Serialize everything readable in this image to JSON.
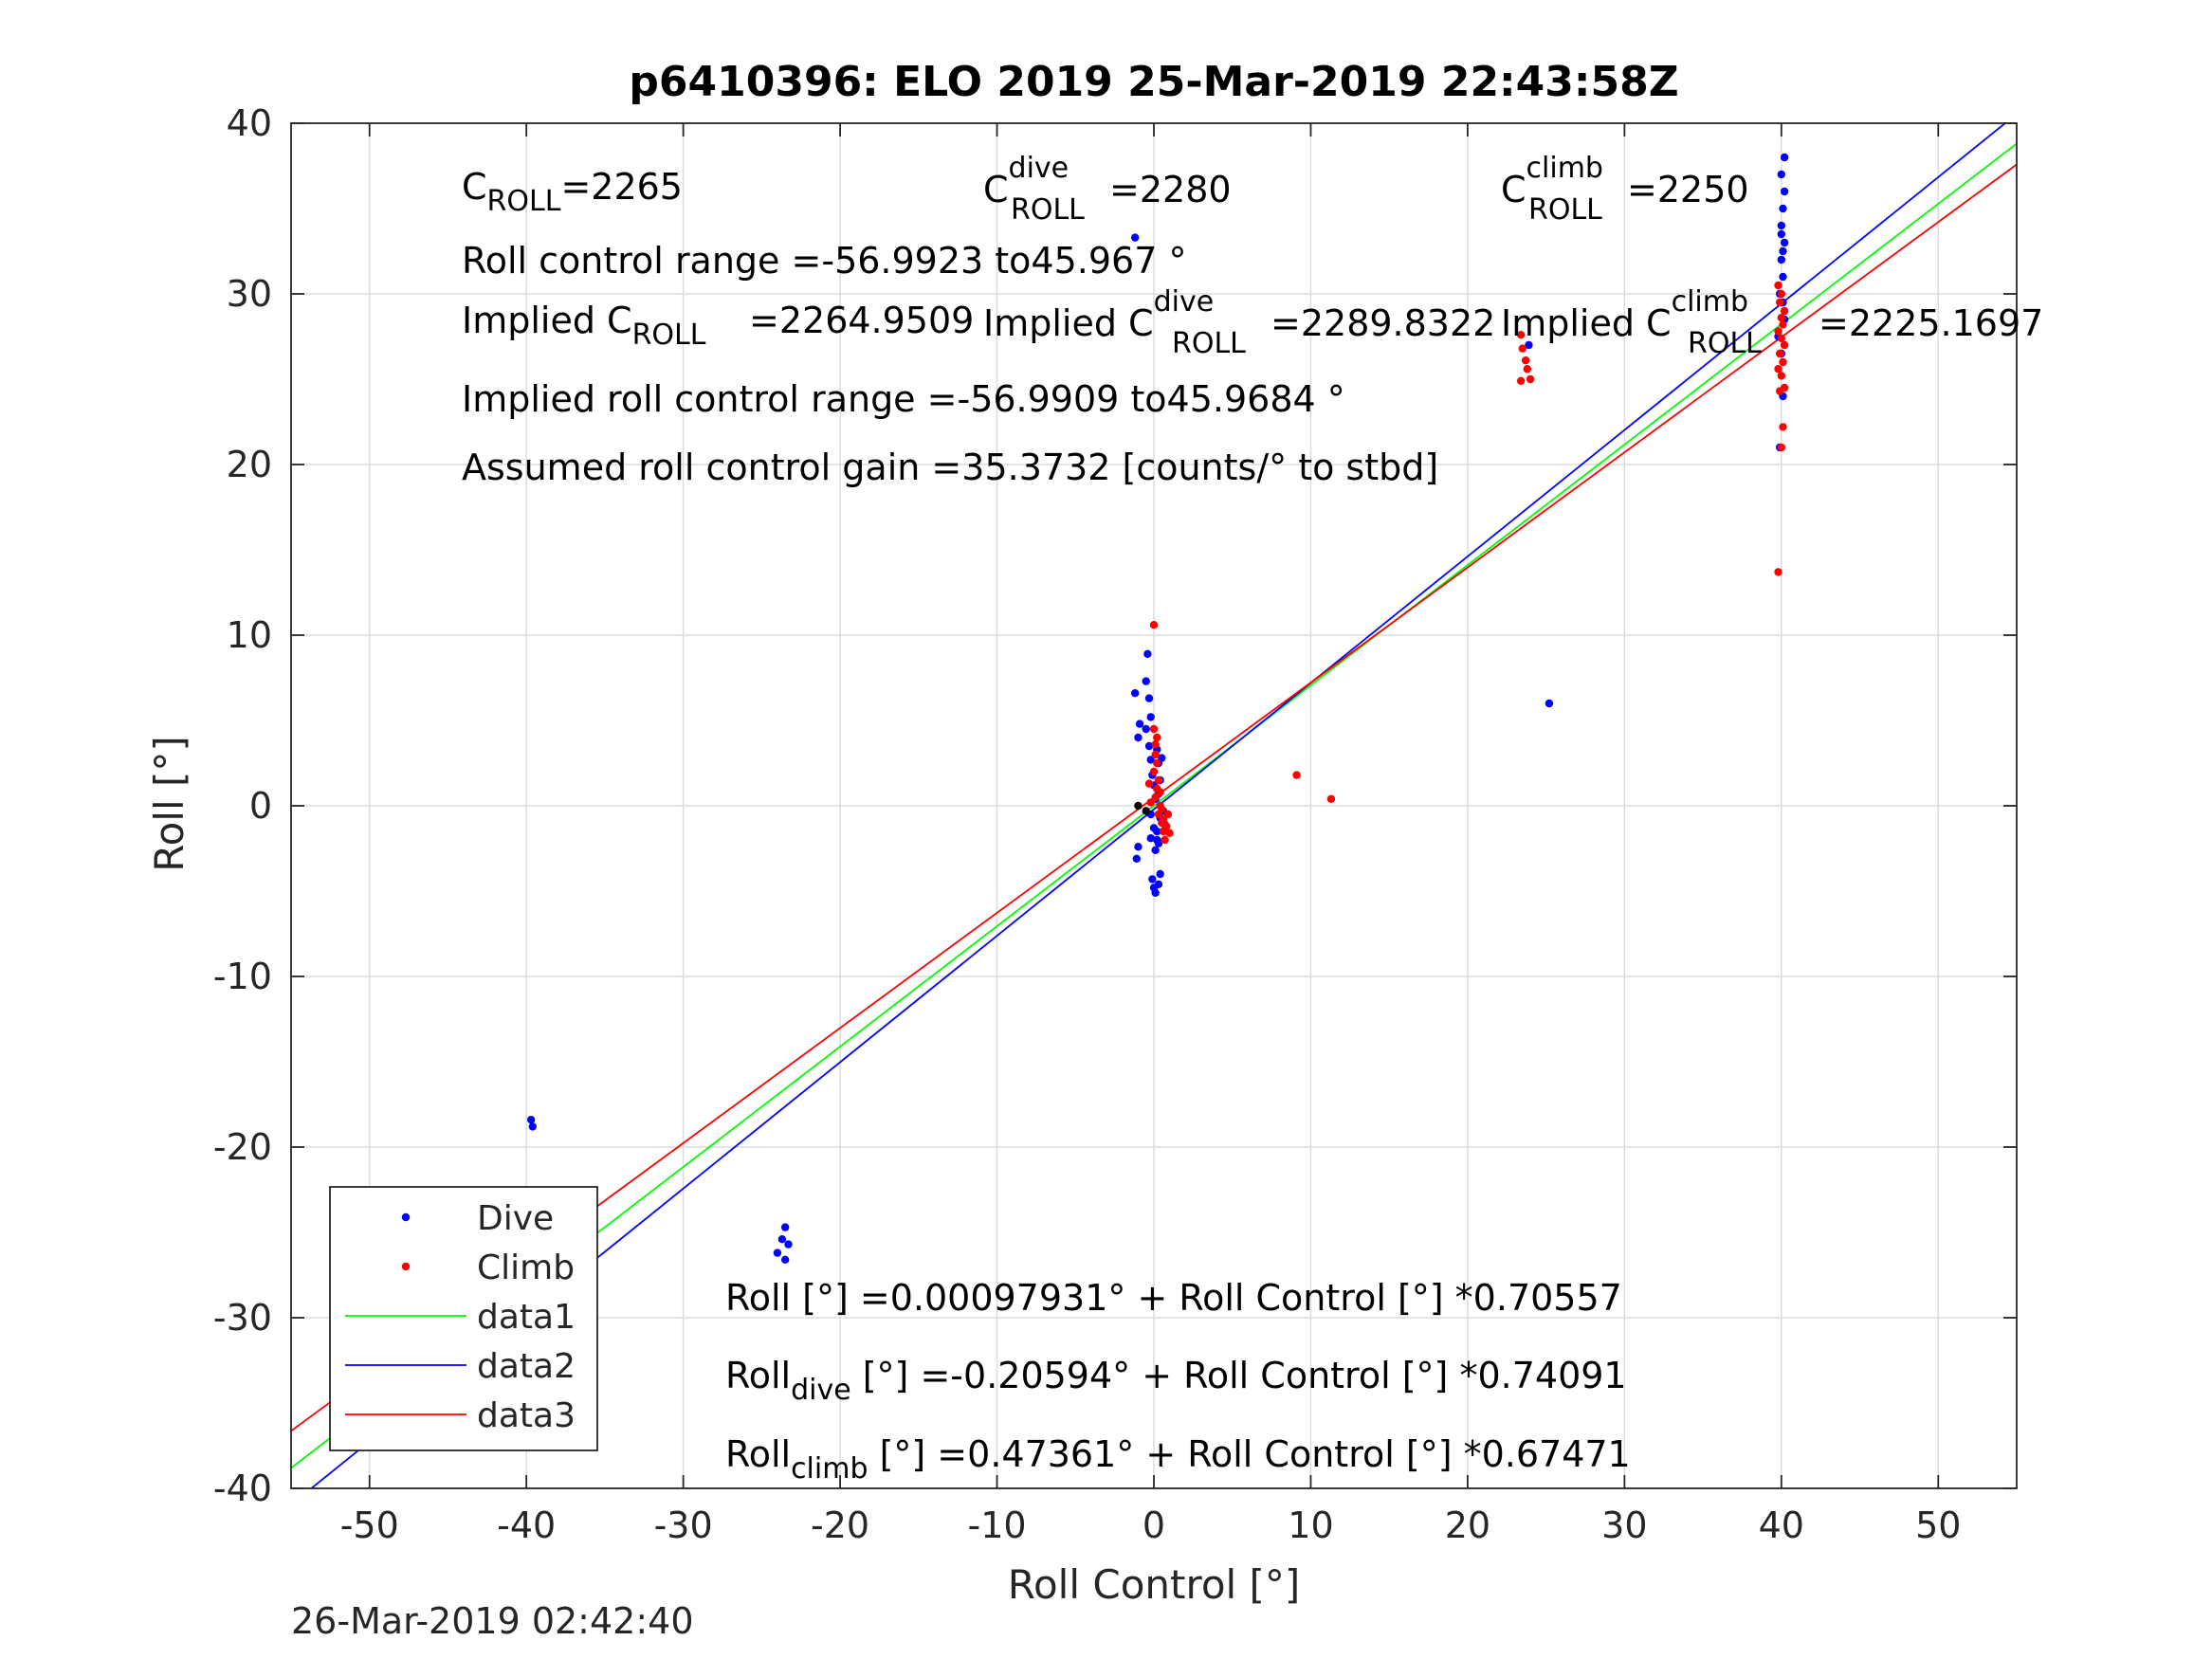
{
  "chart_data": {
    "type": "scatter",
    "title": "p6410396: ELO 2019 25-Mar-2019 22:43:58Z",
    "xlabel": "Roll Control [°]",
    "ylabel": "Roll [°]",
    "xlim": [
      -55,
      55
    ],
    "ylim": [
      -40,
      40
    ],
    "xticks": [
      "-50",
      "-40",
      "-30",
      "-20",
      "-10",
      "0",
      "10",
      "20",
      "30",
      "40",
      "50"
    ],
    "yticks": [
      "-40",
      "-30",
      "-20",
      "-10",
      "0",
      "10",
      "20",
      "30",
      "40"
    ],
    "grid": true,
    "legend_position": "bottom-left",
    "footer": "26-Mar-2019 02:42:40",
    "colors": {
      "dive": "#0000ff",
      "climb": "#ff0000",
      "data1": "#00ff00",
      "data2": "#0000ff",
      "data3": "#ff0000"
    },
    "series": [
      {
        "name": "Dive",
        "kind": "points",
        "color": "#0000ff",
        "points": [
          [
            -39.7,
            -18.4
          ],
          [
            -39.6,
            -18.8
          ],
          [
            -39.8,
            -26.9
          ],
          [
            -39.6,
            -27.2
          ],
          [
            -39.5,
            -27.5
          ],
          [
            -39.7,
            -27.8
          ],
          [
            -39.4,
            -28.0
          ],
          [
            -39.8,
            -27.6
          ],
          [
            -39.5,
            -26.7
          ],
          [
            -24.0,
            -26.2
          ],
          [
            -23.7,
            -25.4
          ],
          [
            -23.5,
            -24.7
          ],
          [
            -23.3,
            -25.7
          ],
          [
            -23.5,
            -26.6
          ],
          [
            -1.2,
            33.3
          ],
          [
            -1.0,
            4.0
          ],
          [
            -1.1,
            -3.1
          ],
          [
            -1.2,
            6.6
          ],
          [
            -0.9,
            4.8
          ],
          [
            -0.5,
            7.3
          ],
          [
            -0.4,
            8.9
          ],
          [
            -0.3,
            6.3
          ],
          [
            -0.2,
            5.2
          ],
          [
            -0.5,
            4.5
          ],
          [
            -0.3,
            3.5
          ],
          [
            -0.2,
            2.7
          ],
          [
            -0.1,
            1.8
          ],
          [
            0.0,
            1.2
          ],
          [
            0.1,
            0.4
          ],
          [
            -0.2,
            -0.5
          ],
          [
            0.0,
            -1.3
          ],
          [
            0.2,
            -2.0
          ],
          [
            0.1,
            -2.6
          ],
          [
            -0.1,
            -4.3
          ],
          [
            0.0,
            -4.8
          ],
          [
            0.1,
            -5.1
          ],
          [
            0.3,
            -4.6
          ],
          [
            0.4,
            -4.0
          ],
          [
            0.3,
            -2.2
          ],
          [
            0.2,
            -1.5
          ],
          [
            0.4,
            -0.7
          ],
          [
            0.3,
            0.7
          ],
          [
            0.4,
            1.5
          ],
          [
            0.3,
            2.5
          ],
          [
            0.2,
            3.3
          ],
          [
            0.5,
            2.8
          ],
          [
            -0.2,
            -1.9
          ],
          [
            0.6,
            -0.3
          ],
          [
            0.7,
            -1.1
          ],
          [
            -1.0,
            -2.4
          ],
          [
            25.2,
            6.0
          ],
          [
            23.9,
            27.0
          ],
          [
            39.9,
            21.0
          ],
          [
            40.1,
            24.0
          ],
          [
            40.0,
            26.5
          ],
          [
            40.2,
            28.5
          ],
          [
            39.9,
            30.0
          ],
          [
            40.1,
            31.0
          ],
          [
            40.0,
            32.0
          ],
          [
            40.2,
            33.0
          ],
          [
            40.0,
            34.0
          ],
          [
            40.1,
            35.0
          ],
          [
            40.2,
            36.0
          ],
          [
            40.0,
            37.0
          ],
          [
            40.2,
            38.0
          ],
          [
            40.1,
            32.5
          ],
          [
            40.0,
            33.5
          ],
          [
            40.1,
            29.5
          ],
          [
            39.8,
            27.5
          ]
        ]
      },
      {
        "name": "Climb",
        "kind": "points",
        "color": "#ff0000",
        "points": [
          [
            -39.6,
            -26.8
          ],
          [
            -39.5,
            -27.4
          ],
          [
            -39.7,
            -27.0
          ],
          [
            0.0,
            10.6
          ],
          [
            0.0,
            4.5
          ],
          [
            0.1,
            3.0
          ],
          [
            0.2,
            2.5
          ],
          [
            0.0,
            2.0
          ],
          [
            0.3,
            1.5
          ],
          [
            0.2,
            1.0
          ],
          [
            0.1,
            0.5
          ],
          [
            0.4,
            0.0
          ],
          [
            0.3,
            -0.5
          ],
          [
            0.5,
            -1.0
          ],
          [
            0.6,
            -1.5
          ],
          [
            0.7,
            -2.0
          ],
          [
            0.4,
            0.8
          ],
          [
            0.5,
            -0.2
          ],
          [
            0.6,
            -0.8
          ],
          [
            0.8,
            -1.2
          ],
          [
            0.9,
            -0.5
          ],
          [
            1.0,
            -1.6
          ],
          [
            -0.3,
            1.3
          ],
          [
            -0.2,
            0.2
          ],
          [
            0.2,
            4.0
          ],
          [
            0.1,
            3.6
          ],
          [
            9.1,
            1.8
          ],
          [
            11.3,
            0.4
          ],
          [
            23.4,
            27.6
          ],
          [
            23.5,
            26.8
          ],
          [
            23.7,
            26.1
          ],
          [
            23.8,
            25.6
          ],
          [
            24.0,
            25.0
          ],
          [
            23.4,
            24.9
          ],
          [
            39.8,
            13.7
          ],
          [
            40.0,
            21.0
          ],
          [
            40.1,
            22.2
          ],
          [
            39.9,
            24.3
          ],
          [
            40.2,
            24.5
          ],
          [
            40.0,
            25.2
          ],
          [
            39.8,
            25.6
          ],
          [
            40.1,
            26.0
          ],
          [
            39.9,
            26.5
          ],
          [
            40.2,
            27.0
          ],
          [
            40.0,
            27.4
          ],
          [
            39.8,
            27.8
          ],
          [
            40.1,
            28.2
          ],
          [
            40.0,
            28.6
          ],
          [
            40.2,
            29.0
          ],
          [
            39.9,
            29.5
          ],
          [
            40.0,
            30.0
          ],
          [
            39.8,
            30.5
          ]
        ]
      },
      {
        "name": "",
        "kind": "points",
        "color": "#000000",
        "points": [
          [
            -1.0,
            0.0
          ],
          [
            -0.5,
            -0.3
          ]
        ]
      },
      {
        "name": "data1",
        "kind": "line",
        "color": "#00ff00",
        "intercept": 0.00097931,
        "slope": 0.70557
      },
      {
        "name": "data2",
        "kind": "line",
        "color": "#0000ff",
        "intercept": -0.20594,
        "slope": 0.74091
      },
      {
        "name": "data3",
        "kind": "line",
        "color": "#ff0000",
        "intercept": 0.47361,
        "slope": 0.67471
      }
    ],
    "legend": [
      {
        "label": "Dive",
        "kind": "marker",
        "color": "#0000ff"
      },
      {
        "label": "Climb",
        "kind": "marker",
        "color": "#ff0000"
      },
      {
        "label": "data1",
        "kind": "line",
        "color": "#00ff00"
      },
      {
        "label": "data2",
        "kind": "line",
        "color": "#0000ff"
      },
      {
        "label": "data3",
        "kind": "line",
        "color": "#ff0000"
      }
    ],
    "annotations": {
      "c_roll": {
        "base": "C",
        "sub": "ROLL",
        "value": "=2265"
      },
      "c_roll_dive": {
        "base": "C",
        "sup": "dive",
        "sub": "ROLL",
        "value": "=2280"
      },
      "c_roll_climb": {
        "base": "C",
        "sup": "climb",
        "sub": "ROLL",
        "value": "=2250"
      },
      "roll_range": "Roll control range =-56.9923 to45.967 °",
      "implied_c_roll": {
        "prefix": "Implied C",
        "sub": "ROLL",
        "value": "=2264.9509"
      },
      "implied_c_dive": {
        "prefix": "Implied C",
        "sup": "dive",
        "sub": "ROLL",
        "value": "=2289.8322"
      },
      "implied_c_climb": {
        "prefix": "Implied C",
        "sup": "climb",
        "sub": "ROLL",
        "value": "=2225.1697"
      },
      "implied_range": "Implied roll control range =-56.9909 to45.9684 °",
      "gain": "Assumed roll control gain =35.3732 [counts/° to stbd]",
      "eq_all": {
        "prefix": "Roll [°] =0.00097931° + Roll Control [°] *0.70557"
      },
      "eq_dive": {
        "base": "Roll",
        "sub": "dive",
        "rest": " [°] =-0.20594° + Roll Control [°] *0.74091"
      },
      "eq_climb": {
        "base": "Roll",
        "sub": "climb",
        "rest": " [°] =0.47361° + Roll Control [°] *0.67471"
      }
    }
  }
}
